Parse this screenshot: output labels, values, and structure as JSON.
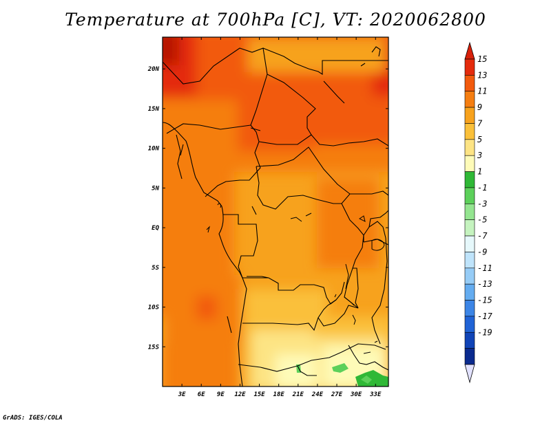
{
  "title": "Temperature at 700hPa [C], VT: 2020062800",
  "footer": "GrADS: IGES/COLA",
  "map": {
    "variable": "Temperature at 700hPa",
    "units": "C",
    "valid_time": "2020062800",
    "lon_range": [
      0,
      35
    ],
    "lat_range": [
      -20,
      24
    ],
    "x_ticks": [
      {
        "value": 3,
        "label": "3E"
      },
      {
        "value": 6,
        "label": "6E"
      },
      {
        "value": 9,
        "label": "9E"
      },
      {
        "value": 12,
        "label": "12E"
      },
      {
        "value": 15,
        "label": "15E"
      },
      {
        "value": 18,
        "label": "18E"
      },
      {
        "value": 21,
        "label": "21E"
      },
      {
        "value": 24,
        "label": "24E"
      },
      {
        "value": 27,
        "label": "27E"
      },
      {
        "value": 30,
        "label": "30E"
      },
      {
        "value": 33,
        "label": "33E"
      }
    ],
    "y_ticks": [
      {
        "value": 20,
        "label": "20N"
      },
      {
        "value": 15,
        "label": "15N"
      },
      {
        "value": 10,
        "label": "10N"
      },
      {
        "value": 5,
        "label": "5N"
      },
      {
        "value": 0,
        "label": "EQ"
      },
      {
        "value": -5,
        "label": "5S"
      },
      {
        "value": -10,
        "label": "10S"
      },
      {
        "value": -15,
        "label": "15S"
      }
    ]
  },
  "colorbar": {
    "labels": [
      "15",
      "13",
      "11",
      "9",
      "7",
      "5",
      "3",
      "1",
      "-1",
      "-3",
      "-5",
      "-7",
      "-9",
      "-11",
      "-13",
      "-15",
      "-17",
      "-19"
    ],
    "colors": [
      "#b71705",
      "#e42b0c",
      "#f25a0d",
      "#f57e11",
      "#f7a21d",
      "#fac03a",
      "#fde484",
      "#fefbb8",
      "#2fb836",
      "#5cd05a",
      "#94e590",
      "#c5f3bf",
      "#e6f8fb",
      "#bfe4fb",
      "#96ccf6",
      "#64acf0",
      "#3c85e6",
      "#2063d6",
      "#1044b7",
      "#0a2a8e",
      "#05115d"
    ],
    "top_arrow_color": "#d8200a",
    "bottom_arrow_color": "#e2e2ff"
  }
}
